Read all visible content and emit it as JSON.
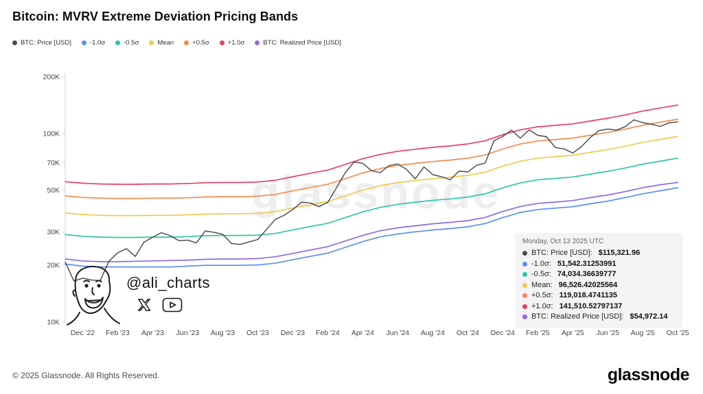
{
  "page": {
    "title": "Bitcoin: MVRV Extreme Deviation Pricing Bands",
    "watermark": "glassnode",
    "handle": "@ali_charts",
    "footer": {
      "copyright": "© 2025 Glassnode. All Rights Reserved.",
      "brand": "glassnode"
    }
  },
  "legend": [
    {
      "label": "BTC: Price [USD]",
      "color": "#4a4a4a"
    },
    {
      "label": "-1.0σ",
      "color": "#5b8df5"
    },
    {
      "label": "-0.5σ",
      "color": "#2ec7a6"
    },
    {
      "label": "Mean",
      "color": "#f2c94c"
    },
    {
      "label": "+0.5σ",
      "color": "#f58a4e"
    },
    {
      "label": "+1.0σ",
      "color": "#e83e5f"
    },
    {
      "label": "BTC: Realized Price [USD]",
      "color": "#8f6ae0"
    }
  ],
  "tooltip": {
    "date": "Monday, Oct 13 2025 UTC",
    "rows": [
      {
        "label": "BTC: Price [USD]:",
        "value": "$115,321.96",
        "color": "#4a4a4a"
      },
      {
        "label": "-1.0σ:",
        "value": "51,542.31253991",
        "color": "#5b8df5"
      },
      {
        "label": "-0.5σ:",
        "value": "74,034.36639777",
        "color": "#2ec7a6"
      },
      {
        "label": "Mean:",
        "value": "96,526.42025564",
        "color": "#f2c94c"
      },
      {
        "label": "+0.5σ:",
        "value": "119,018.4741135",
        "color": "#f58a4e"
      },
      {
        "label": "+1.0σ:",
        "value": "141,510.52797137",
        "color": "#e83e5f"
      },
      {
        "label": "BTC: Realized Price [USD]:",
        "value": "$54,972.14",
        "color": "#8f6ae0"
      }
    ]
  },
  "chart_data": {
    "type": "line",
    "title": "Bitcoin: MVRV Extreme Deviation Pricing Bands",
    "y_scale": "log",
    "ylim": [
      10000,
      200000
    ],
    "x_domain": [
      0,
      35.5
    ],
    "x_unit": "months since Nov 2022 (0 = Nov '22, 35 = Oct '25)",
    "grid": false,
    "legend_position": "top-left",
    "y_ticks": [
      {
        "v": 200000,
        "label": "200K"
      },
      {
        "v": 100000,
        "label": "100K"
      },
      {
        "v": 70000,
        "label": "70K"
      },
      {
        "v": 50000,
        "label": "50K"
      },
      {
        "v": 30000,
        "label": "30K"
      },
      {
        "v": 20000,
        "label": "20K"
      },
      {
        "v": 10000,
        "label": "10K"
      }
    ],
    "x_ticks": [
      {
        "i": 1,
        "label": "Dec '22"
      },
      {
        "i": 3,
        "label": "Feb '23"
      },
      {
        "i": 5,
        "label": "Apr '23"
      },
      {
        "i": 7,
        "label": "Jun '23"
      },
      {
        "i": 9,
        "label": "Aug '23"
      },
      {
        "i": 11,
        "label": "Oct '23"
      },
      {
        "i": 13,
        "label": "Dec '23"
      },
      {
        "i": 15,
        "label": "Feb '24"
      },
      {
        "i": 17,
        "label": "Apr '24"
      },
      {
        "i": 19,
        "label": "Jun '24"
      },
      {
        "i": 21,
        "label": "Aug '24"
      },
      {
        "i": 23,
        "label": "Oct '24"
      },
      {
        "i": 25,
        "label": "Dec '24"
      },
      {
        "i": 27,
        "label": "Feb '25"
      },
      {
        "i": 29,
        "label": "Apr '25"
      },
      {
        "i": 31,
        "label": "Jun '25"
      },
      {
        "i": 33,
        "label": "Aug '25"
      },
      {
        "i": 35,
        "label": "Oct '25"
      }
    ],
    "series": [
      {
        "id": "realized-price",
        "name": "BTC: Realized Price [USD]",
        "color": "#8f6ae0",
        "width": 1.7,
        "x_step": 1,
        "values": [
          21600,
          21100,
          20900,
          20900,
          21000,
          21100,
          21200,
          21300,
          21500,
          21600,
          21600,
          21700,
          22200,
          23100,
          24100,
          25100,
          26900,
          28800,
          30500,
          31600,
          32400,
          33200,
          33800,
          34500,
          35900,
          38600,
          41000,
          42600,
          43300,
          44100,
          45700,
          47200,
          49200,
          51600,
          53500,
          54972
        ]
      },
      {
        "id": "minus-1-sigma",
        "name": "-1.0σ",
        "color": "#5b8df5",
        "width": 1.7,
        "x_step": 1,
        "values": [
          20300,
          19800,
          19600,
          19600,
          19600,
          19600,
          19600,
          19800,
          20000,
          20000,
          20000,
          20100,
          20500,
          21400,
          22300,
          23200,
          24900,
          26700,
          28300,
          29300,
          30100,
          30800,
          31300,
          32000,
          33300,
          35800,
          38100,
          39500,
          40200,
          40900,
          42400,
          43800,
          45700,
          47900,
          49700,
          51542
        ]
      },
      {
        "id": "minus-05-sigma",
        "name": "-0.5σ",
        "color": "#2ec7a6",
        "width": 1.7,
        "x_step": 1,
        "values": [
          29100,
          28500,
          28200,
          28100,
          28100,
          28200,
          28200,
          28400,
          28700,
          28800,
          28800,
          28900,
          29500,
          30800,
          32100,
          33400,
          35800,
          38400,
          40600,
          42100,
          43200,
          44200,
          45000,
          46000,
          47900,
          51500,
          54700,
          56800,
          57800,
          58800,
          60900,
          63000,
          65600,
          68800,
          71400,
          74034
        ]
      },
      {
        "id": "mean",
        "name": "Mean",
        "color": "#f2c94c",
        "width": 1.7,
        "x_step": 1,
        "values": [
          37900,
          37200,
          36800,
          36700,
          36700,
          36800,
          36800,
          37000,
          37400,
          37500,
          37500,
          37700,
          38500,
          40200,
          41900,
          43600,
          46700,
          50100,
          52900,
          54900,
          56300,
          57600,
          58700,
          60000,
          62400,
          67200,
          71300,
          74000,
          75400,
          76700,
          79400,
          82200,
          85600,
          89700,
          93100,
          96526
        ]
      },
      {
        "id": "plus-05-sigma",
        "name": "+0.5σ",
        "color": "#f58a4e",
        "width": 1.7,
        "x_step": 1,
        "values": [
          46700,
          45800,
          45400,
          45200,
          45200,
          45400,
          45400,
          45600,
          46100,
          46200,
          46200,
          46500,
          47500,
          49600,
          51700,
          53800,
          57600,
          61800,
          65200,
          67700,
          69400,
          71000,
          72300,
          74000,
          76900,
          82800,
          87900,
          91200,
          92900,
          94600,
          97900,
          101300,
          105500,
          110600,
          114800,
          119018
        ]
      },
      {
        "id": "plus-1-sigma",
        "name": "+1.0σ",
        "color": "#e83e5f",
        "width": 1.7,
        "x_step": 1,
        "values": [
          55500,
          54500,
          54000,
          53800,
          53800,
          54000,
          54000,
          54300,
          54800,
          55000,
          55000,
          55300,
          56500,
          59000,
          61500,
          64000,
          68500,
          73500,
          77500,
          80500,
          82500,
          84500,
          86000,
          88000,
          91500,
          98500,
          104500,
          108500,
          110500,
          112500,
          116500,
          120500,
          125500,
          131500,
          136500,
          141510
        ]
      },
      {
        "id": "btc-price",
        "name": "BTC: Price [USD]",
        "color": "#454545",
        "width": 1.4,
        "x_step": 0.5,
        "values": [
          20800,
          16500,
          17100,
          16700,
          16600,
          21000,
          23300,
          24500,
          22300,
          26500,
          28200,
          29800,
          28700,
          27000,
          27200,
          26300,
          30400,
          29900,
          29200,
          26100,
          25800,
          26600,
          27400,
          31000,
          35000,
          36800,
          39500,
          43200,
          42800,
          41000,
          43100,
          51500,
          62000,
          70500,
          69500,
          63500,
          62000,
          67500,
          69000,
          64500,
          57500,
          66500,
          60500,
          59000,
          56800,
          63200,
          62500,
          67800,
          69800,
          91500,
          96500,
          104200,
          94500,
          104500,
          97800,
          96200,
          84300,
          82800,
          78800,
          85200,
          95200,
          103500,
          105600,
          104200,
          108800,
          118200,
          114200,
          112000,
          109000,
          114000,
          115322
        ]
      }
    ]
  }
}
